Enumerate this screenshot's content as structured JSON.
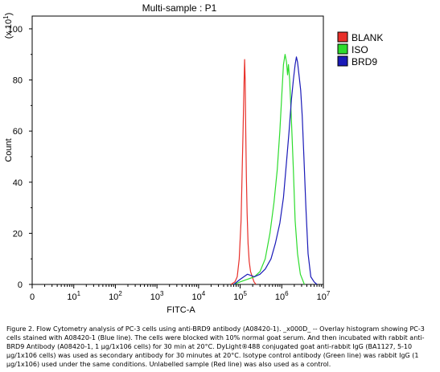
{
  "chart_data": {
    "type": "line",
    "title": "Multi-sample : P1",
    "xlabel": "FITC-A",
    "ylabel": "Count",
    "y_multiplier": {
      "base": "(x 10",
      "exp": "1",
      "close": ")"
    },
    "xscale": "log",
    "xlim": [
      1,
      10000000
    ],
    "ylim": [
      0,
      105
    ],
    "x_ticks": [
      {
        "value": 1,
        "base": "0",
        "exp": ""
      },
      {
        "value": 10,
        "base": "10",
        "exp": "1"
      },
      {
        "value": 100,
        "base": "10",
        "exp": "2"
      },
      {
        "value": 1000,
        "base": "10",
        "exp": "3"
      },
      {
        "value": 10000,
        "base": "10",
        "exp": "4"
      },
      {
        "value": 100000,
        "base": "10",
        "exp": "5"
      },
      {
        "value": 1000000,
        "base": "10",
        "exp": "6"
      },
      {
        "value": 10000000,
        "base": "10",
        "exp": "7"
      }
    ],
    "y_ticks": [
      0,
      20,
      40,
      60,
      80,
      100
    ],
    "grid": false,
    "legend_position": "top-right",
    "series": [
      {
        "name": "BLANK",
        "color": "#e8302a",
        "x": [
          60000,
          75000,
          85000,
          95000,
          105000,
          112000,
          118000,
          124000,
          128000,
          132000,
          136000,
          141000,
          147000,
          155000,
          165000,
          178000,
          195000,
          215000,
          240000
        ],
        "y": [
          0,
          1,
          3,
          10,
          25,
          45,
          62,
          79,
          88,
          80,
          60,
          42,
          28,
          16,
          9,
          5,
          3,
          1,
          0
        ]
      },
      {
        "name": "ISO",
        "color": "#2ddc2d",
        "x": [
          70000,
          100000,
          150000,
          220000,
          300000,
          400000,
          520000,
          650000,
          780000,
          900000,
          1000000,
          1100000,
          1200000,
          1300000,
          1380000,
          1450000,
          1550000,
          1700000,
          1900000,
          2100000,
          2400000,
          2800000,
          3500000
        ],
        "y": [
          0,
          1,
          2,
          3,
          5,
          10,
          20,
          32,
          45,
          60,
          74,
          86,
          90,
          87,
          82,
          86,
          80,
          65,
          45,
          25,
          12,
          4,
          0
        ]
      },
      {
        "name": "BRD9",
        "color": "#1a1ab8",
        "x": [
          70000,
          100000,
          150000,
          220000,
          300000,
          400000,
          550000,
          700000,
          900000,
          1100000,
          1300000,
          1500000,
          1700000,
          1900000,
          2100000,
          2250000,
          2400000,
          2600000,
          2850000,
          3100000,
          3400000,
          3800000,
          4300000,
          5000000,
          6000000,
          7000000
        ],
        "y": [
          0,
          2,
          4,
          3,
          4,
          6,
          10,
          16,
          24,
          34,
          48,
          60,
          72,
          80,
          86,
          89,
          87,
          82,
          76,
          66,
          50,
          30,
          12,
          3,
          1,
          0
        ]
      }
    ]
  },
  "caption": "Figure 2. Flow Cytometry analysis of PC-3 cells using anti-BRD9 antibody (A08420-1). _x000D_ -- Overlay histogram showing PC-3 cells stained with A08420-1 (Blue line). The cells were blocked with 10% normal goat serum. And then incubated with rabbit anti-BRD9 Antibody (A08420-1, 1 μg/1x106 cells) for 30 min at 20°C. DyLight®488 conjugated goat anti-rabbit IgG (BA1127, 5-10 μg/1x106 cells) was used as secondary antibody for 30 minutes at 20°C. Isotype control antibody (Green line) was rabbit IgG (1 μg/1x106) used under the same conditions. Unlabelled sample (Red line) was also used as a control."
}
